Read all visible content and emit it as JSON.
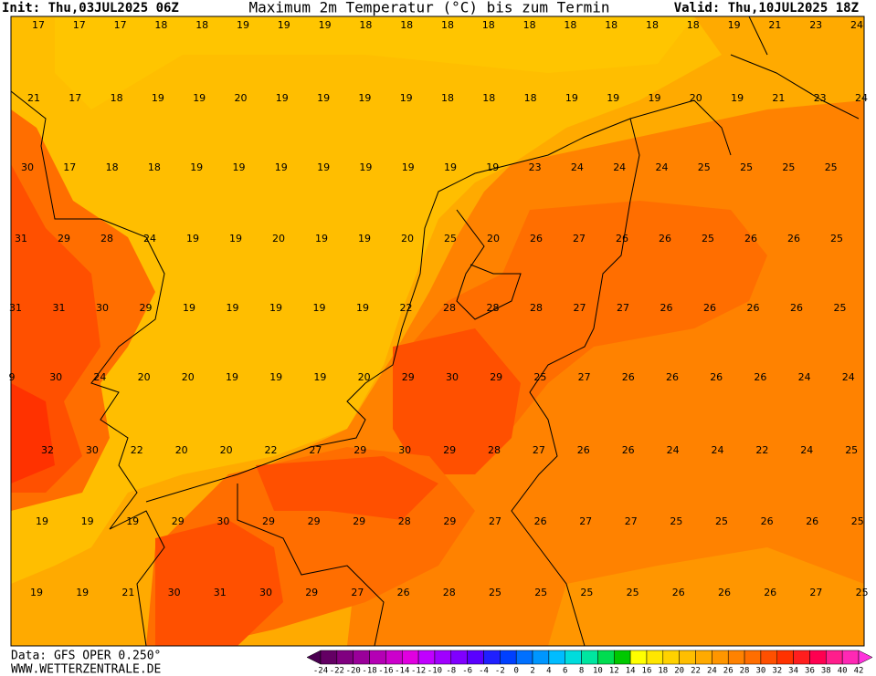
{
  "header": {
    "init": "Init: Thu,03JUL2025 06Z",
    "title": "Maximum 2m Temperatur (°C) bis zum Termin",
    "valid": "Valid: Thu,10JUL2025 18Z"
  },
  "map": {
    "values": [
      [
        17,
        17,
        17,
        18,
        18,
        19,
        19,
        19,
        18,
        18,
        18,
        18,
        18,
        18,
        18,
        18,
        18,
        19,
        21,
        23,
        24
      ],
      [
        21,
        17,
        18,
        19,
        19,
        20,
        19,
        19,
        19,
        19,
        18,
        18,
        18,
        19,
        19,
        19,
        20,
        19,
        21,
        23,
        24
      ],
      [
        30,
        17,
        18,
        18,
        19,
        19,
        19,
        19,
        19,
        19,
        19,
        19,
        23,
        24,
        24,
        24,
        25,
        25,
        25,
        25
      ],
      [
        31,
        29,
        28,
        24,
        19,
        19,
        20,
        19,
        19,
        20,
        25,
        20,
        26,
        27,
        26,
        26,
        25,
        26,
        26,
        25
      ],
      [
        31,
        31,
        30,
        29,
        19,
        19,
        19,
        19,
        19,
        22,
        28,
        28,
        28,
        27,
        27,
        26,
        26,
        26,
        26,
        25
      ],
      [
        9,
        30,
        24,
        20,
        20,
        19,
        19,
        19,
        20,
        29,
        30,
        29,
        25,
        27,
        26,
        26,
        26,
        26,
        24,
        24
      ],
      [
        32,
        30,
        22,
        20,
        20,
        22,
        27,
        29,
        30,
        29,
        28,
        27,
        26,
        26,
        24,
        24,
        22,
        24,
        25
      ],
      [
        19,
        19,
        19,
        29,
        30,
        29,
        29,
        29,
        28,
        29,
        27,
        26,
        27,
        27,
        25,
        25,
        26,
        26,
        25
      ],
      [
        19,
        19,
        21,
        30,
        31,
        30,
        29,
        27,
        26,
        28,
        25,
        25,
        25,
        25,
        26,
        26,
        26,
        27,
        25
      ]
    ]
  },
  "colorbar": {
    "ticks": [
      -24,
      -22,
      -20,
      -18,
      -16,
      -14,
      -12,
      -10,
      -8,
      -6,
      -4,
      -2,
      0,
      2,
      4,
      6,
      8,
      10,
      12,
      14,
      16,
      18,
      20,
      22,
      24,
      26,
      28,
      30,
      32,
      34,
      36,
      38,
      40,
      42
    ],
    "colors": [
      "#4a0050",
      "#640064",
      "#800080",
      "#9a009a",
      "#b400b4",
      "#cc00cc",
      "#e000e0",
      "#c000ff",
      "#a000ff",
      "#8000ff",
      "#5a00ff",
      "#2020ff",
      "#0040ff",
      "#0070ff",
      "#0096ff",
      "#00bcff",
      "#00dcdc",
      "#00e6a0",
      "#00dc50",
      "#00c800",
      "#ffff00",
      "#ffe600",
      "#ffd200",
      "#ffbe00",
      "#ffaa00",
      "#ff9600",
      "#ff8200",
      "#ff6e00",
      "#ff5000",
      "#ff3200",
      "#ff1e1e",
      "#ff0050",
      "#ff1e8c",
      "#ff28b4",
      "#ff32dc"
    ]
  },
  "footer": {
    "source": "Data: GFS OPER 0.250°",
    "website": "WWW.WETTERZENTRALE.DE"
  }
}
